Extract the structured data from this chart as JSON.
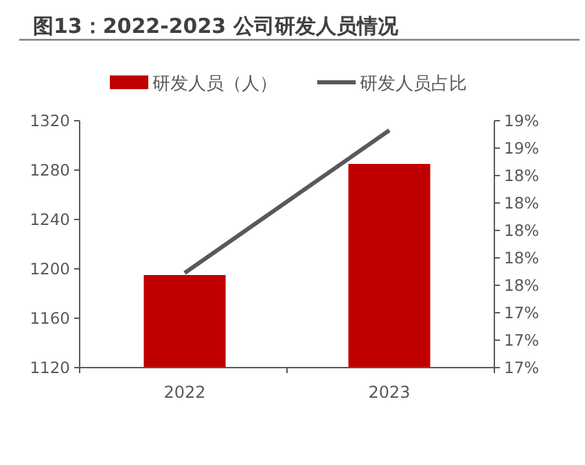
{
  "chart_data": {
    "type": "bar",
    "title": "图13：2022-2023 公司研发人员情况",
    "categories": [
      "2022",
      "2023"
    ],
    "series": [
      {
        "name": "研发人员（人）",
        "color": "#c00000",
        "values": [
          1195,
          1285
        ]
      },
      {
        "name": "研发人员占比",
        "type": "line",
        "axis": "y2",
        "color": "#595959",
        "values": [
          17.69,
          18.73
        ]
      }
    ],
    "ylim": [
      1120,
      1320
    ],
    "yticks": [
      1120,
      1160,
      1200,
      1240,
      1280,
      1320
    ],
    "y2lim": [
      17,
      18.8
    ],
    "y2ticks": [
      {
        "value": 17,
        "label": "17%"
      },
      {
        "value": 17.2,
        "label": "17%"
      },
      {
        "value": 17.4,
        "label": "17%"
      },
      {
        "value": 17.6,
        "label": "18%"
      },
      {
        "value": 17.8,
        "label": "18%"
      },
      {
        "value": 18,
        "label": "18%"
      },
      {
        "value": 18.2,
        "label": "18%"
      },
      {
        "value": 18.4,
        "label": "18%"
      },
      {
        "value": 18.6,
        "label": "19%"
      },
      {
        "value": 18.8,
        "label": "19%"
      }
    ],
    "legend": "top",
    "grid": false
  }
}
